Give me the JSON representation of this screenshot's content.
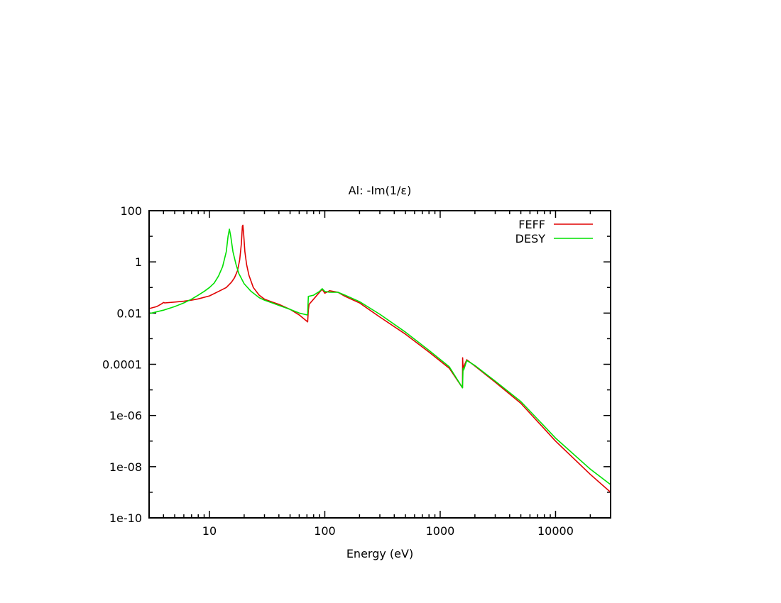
{
  "chart_data": {
    "type": "line",
    "title": "Al: -Im(1/ε)",
    "xlabel": "Energy (eV)",
    "ylabel": "",
    "x_scale": "log",
    "y_scale": "log",
    "xlim": [
      3,
      30000
    ],
    "ylim": [
      1e-10,
      100
    ],
    "grid": false,
    "legend_position": "top-right",
    "x_ticks": [
      {
        "value": 10,
        "label": "10"
      },
      {
        "value": 100,
        "label": "100"
      },
      {
        "value": 1000,
        "label": "1000"
      },
      {
        "value": 10000,
        "label": "10000"
      }
    ],
    "y_ticks": [
      {
        "value": 100,
        "label": "100"
      },
      {
        "value": 1,
        "label": "1"
      },
      {
        "value": 0.01,
        "label": "0.01"
      },
      {
        "value": 0.0001,
        "label": "0.0001"
      },
      {
        "value": 1e-06,
        "label": "1e-06"
      },
      {
        "value": 1e-08,
        "label": "1e-08"
      },
      {
        "value": 1e-10,
        "label": "1e-10"
      }
    ],
    "series": [
      {
        "name": "FEFF",
        "color": "#e00000",
        "points": [
          [
            3.0,
            0.015
          ],
          [
            3.5,
            0.018
          ],
          [
            3.85,
            0.023
          ],
          [
            4.0,
            0.026
          ],
          [
            4.1,
            0.025
          ],
          [
            5.0,
            0.027
          ],
          [
            6.0,
            0.029
          ],
          [
            7.0,
            0.032
          ],
          [
            8.0,
            0.036
          ],
          [
            10.0,
            0.047
          ],
          [
            12.0,
            0.07
          ],
          [
            14.0,
            0.1
          ],
          [
            15.5,
            0.16
          ],
          [
            16.5,
            0.24
          ],
          [
            17.5,
            0.45
          ],
          [
            18.3,
            1.2
          ],
          [
            18.9,
            5.0
          ],
          [
            19.3,
            25.0
          ],
          [
            19.5,
            27.0
          ],
          [
            19.8,
            12.0
          ],
          [
            20.3,
            2.5
          ],
          [
            21.0,
            0.8
          ],
          [
            22.0,
            0.3
          ],
          [
            24.0,
            0.1
          ],
          [
            27.0,
            0.05
          ],
          [
            30.0,
            0.035
          ],
          [
            35.0,
            0.027
          ],
          [
            40.0,
            0.022
          ],
          [
            50.0,
            0.014
          ],
          [
            60.0,
            0.0085
          ],
          [
            71.0,
            0.0045
          ],
          [
            72.0,
            0.013
          ],
          [
            73.0,
            0.022
          ],
          [
            80.0,
            0.035
          ],
          [
            90.0,
            0.065
          ],
          [
            95.0,
            0.085
          ],
          [
            100.0,
            0.06
          ],
          [
            110.0,
            0.075
          ],
          [
            130.0,
            0.065
          ],
          [
            150.0,
            0.045
          ],
          [
            200.0,
            0.025
          ],
          [
            300.0,
            0.007
          ],
          [
            500.0,
            0.0015
          ],
          [
            800.0,
            0.0003
          ],
          [
            1200.0,
            7e-05
          ],
          [
            1560.0,
            1.2e-05
          ],
          [
            1565.0,
            0.00018
          ],
          [
            1580.0,
            7e-05
          ],
          [
            1700.0,
            0.00015
          ],
          [
            2000.0,
            8.5e-05
          ],
          [
            3000.0,
            2e-05
          ],
          [
            5000.0,
            3e-06
          ],
          [
            10000.0,
            1e-07
          ],
          [
            20000.0,
            5e-09
          ],
          [
            30000.0,
            1e-09
          ]
        ]
      },
      {
        "name": "DESY",
        "color": "#00e000",
        "points": [
          [
            3.0,
            0.0095
          ],
          [
            4.0,
            0.013
          ],
          [
            5.0,
            0.018
          ],
          [
            6.0,
            0.025
          ],
          [
            7.0,
            0.035
          ],
          [
            8.0,
            0.05
          ],
          [
            9.0,
            0.07
          ],
          [
            10.0,
            0.1
          ],
          [
            11.0,
            0.15
          ],
          [
            12.0,
            0.28
          ],
          [
            13.0,
            0.65
          ],
          [
            14.0,
            2.5
          ],
          [
            14.5,
            10.0
          ],
          [
            14.9,
            19.0
          ],
          [
            15.3,
            10.0
          ],
          [
            16.0,
            2.5
          ],
          [
            17.0,
            0.8
          ],
          [
            18.0,
            0.35
          ],
          [
            20.0,
            0.14
          ],
          [
            23.0,
            0.07
          ],
          [
            27.0,
            0.04
          ],
          [
            30.0,
            0.032
          ],
          [
            35.0,
            0.025
          ],
          [
            40.0,
            0.02
          ],
          [
            50.0,
            0.014
          ],
          [
            60.0,
            0.01
          ],
          [
            70.0,
            0.0085
          ],
          [
            71.0,
            0.009
          ],
          [
            72.0,
            0.045
          ],
          [
            80.0,
            0.05
          ],
          [
            90.0,
            0.07
          ],
          [
            95.0,
            0.09
          ],
          [
            100.0,
            0.07
          ],
          [
            110.0,
            0.065
          ],
          [
            130.0,
            0.065
          ],
          [
            150.0,
            0.05
          ],
          [
            200.0,
            0.028
          ],
          [
            300.0,
            0.009
          ],
          [
            500.0,
            0.0018
          ],
          [
            800.0,
            0.00035
          ],
          [
            1200.0,
            8e-05
          ],
          [
            1560.0,
            1.2e-05
          ],
          [
            1580.0,
            7e-05
          ],
          [
            1600.0,
            6e-05
          ],
          [
            1700.0,
            0.00014
          ],
          [
            2000.0,
            9e-05
          ],
          [
            3000.0,
            2.2e-05
          ],
          [
            5000.0,
            3.5e-06
          ],
          [
            10000.0,
            1.3e-07
          ],
          [
            20000.0,
            8e-09
          ],
          [
            30000.0,
            2e-09
          ]
        ]
      }
    ]
  }
}
